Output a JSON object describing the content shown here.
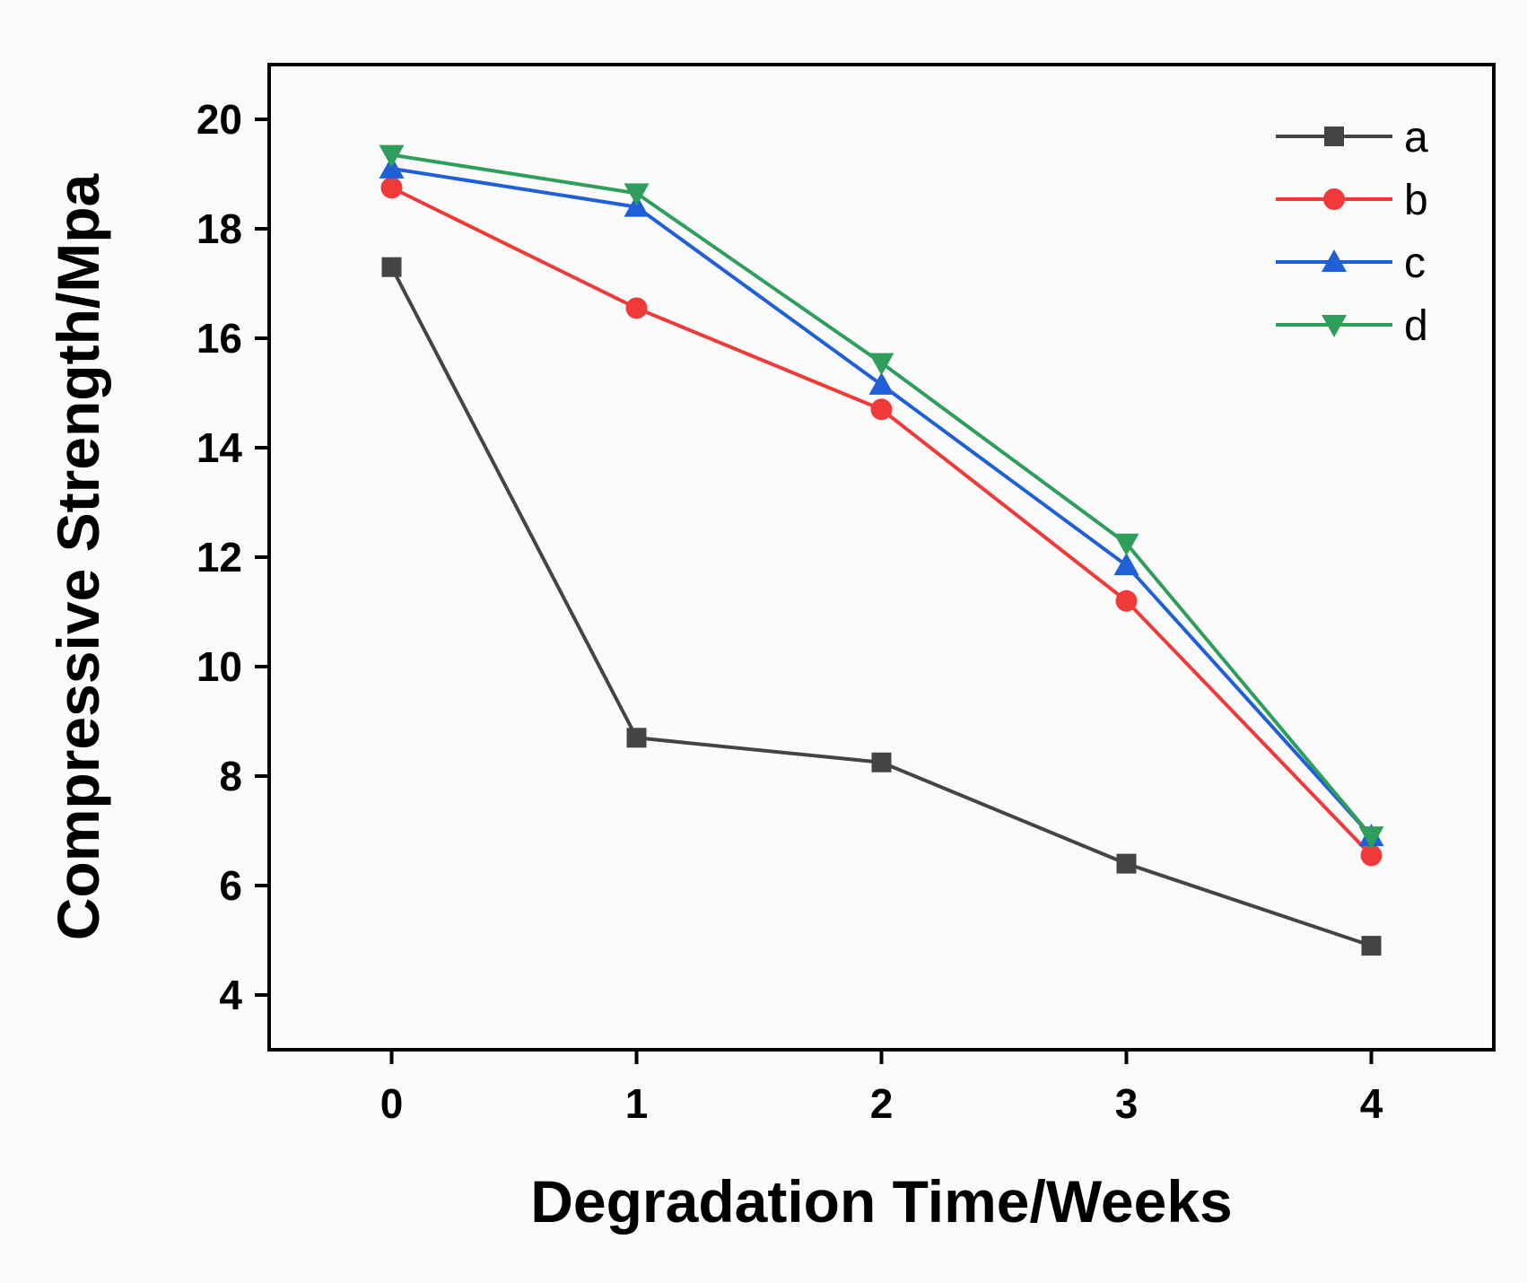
{
  "chart_data": {
    "type": "line",
    "title": "",
    "xlabel": "Degradation Time/Weeks",
    "ylabel": "Compressive Strength/Mpa",
    "x": [
      0,
      1,
      2,
      3,
      4
    ],
    "xticks": [
      0,
      1,
      2,
      3,
      4
    ],
    "xtick_labels": [
      "0",
      "1",
      "2",
      "3",
      "4"
    ],
    "yticks": [
      4,
      6,
      8,
      10,
      12,
      14,
      16,
      18,
      20
    ],
    "ytick_labels": [
      "4",
      "6",
      "8",
      "10",
      "12",
      "14",
      "16",
      "18",
      "20"
    ],
    "xlim": [
      -0.5,
      4.5
    ],
    "ylim": [
      3,
      21
    ],
    "grid": false,
    "legend_position": "top-right",
    "series": [
      {
        "name": "a",
        "values": [
          17.3,
          8.7,
          8.25,
          6.4,
          4.9
        ],
        "color": "#444444",
        "marker": "square"
      },
      {
        "name": "b",
        "values": [
          18.75,
          16.55,
          14.7,
          11.2,
          6.55
        ],
        "color": "#f03a3a",
        "marker": "circle"
      },
      {
        "name": "c",
        "values": [
          19.1,
          18.4,
          15.15,
          11.85,
          6.9
        ],
        "color": "#1f5fd8",
        "marker": "triangle-up"
      },
      {
        "name": "d",
        "values": [
          19.35,
          18.65,
          15.55,
          12.25,
          6.9
        ],
        "color": "#2e9e5a",
        "marker": "triangle-down"
      }
    ]
  }
}
